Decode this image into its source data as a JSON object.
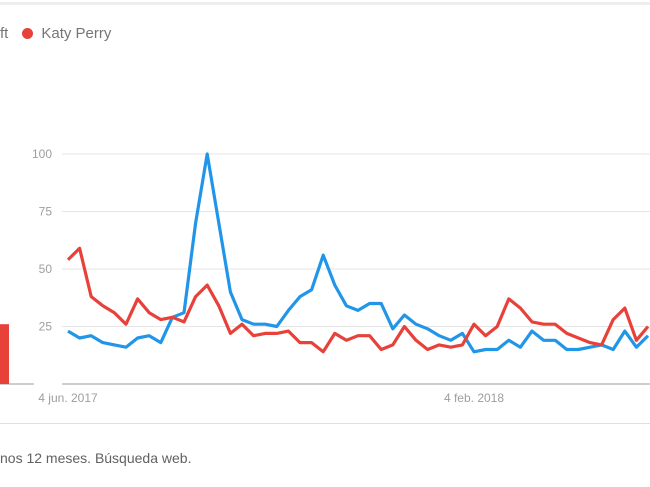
{
  "legend": [
    {
      "label": "ft",
      "color": "#2196e8"
    },
    {
      "label": "Katy Perry",
      "color": "#e8413a"
    }
  ],
  "footer": "nos 12 meses. Búsqueda web.",
  "chart_data": {
    "type": "line",
    "title": "",
    "xlabel": "",
    "ylabel": "",
    "ylim": [
      0,
      100
    ],
    "yticks": [
      "25",
      "50",
      "75",
      "100"
    ],
    "ytick_values": [
      25,
      50,
      75,
      100
    ],
    "xticks": [
      {
        "label": "4 jun. 2017",
        "week_index": 0
      },
      {
        "label": "4 feb. 2018",
        "week_index": 35
      }
    ],
    "grid": true,
    "legend_position": "top-left",
    "average_bar": {
      "series": "Katy Perry",
      "value": 26
    },
    "series": [
      {
        "name": "Taylor Swift (partially visible as \"ft\")",
        "color": "#2196e8",
        "values": [
          23,
          20,
          21,
          18,
          17,
          16,
          20,
          21,
          18,
          29,
          31,
          70,
          100,
          70,
          40,
          28,
          26,
          26,
          25,
          32,
          38,
          41,
          56,
          43,
          34,
          32,
          35,
          35,
          24,
          30,
          26,
          24,
          21,
          19,
          22,
          14,
          15,
          15,
          19,
          16,
          23,
          19,
          19,
          15,
          15,
          16,
          17,
          15,
          23,
          16,
          21
        ]
      },
      {
        "name": "Katy Perry",
        "color": "#e8413a",
        "values": [
          54,
          59,
          38,
          34,
          31,
          26,
          37,
          31,
          28,
          29,
          27,
          38,
          43,
          34,
          22,
          26,
          21,
          22,
          22,
          23,
          18,
          18,
          14,
          22,
          19,
          21,
          21,
          15,
          17,
          25,
          19,
          15,
          17,
          16,
          17,
          26,
          21,
          25,
          37,
          33,
          27,
          26,
          26,
          22,
          20,
          18,
          17,
          28,
          33,
          19,
          25
        ]
      }
    ]
  }
}
